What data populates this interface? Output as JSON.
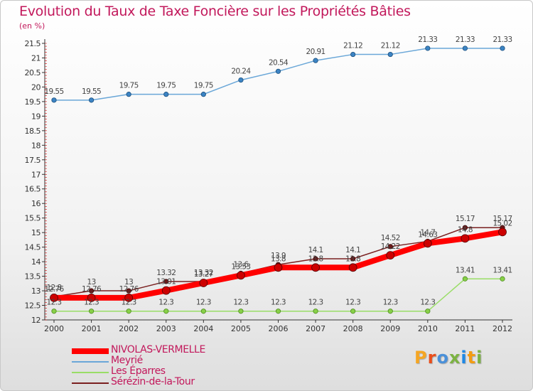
{
  "title": "Evolution du Taux de Taxe Foncière sur les Propriétés Bâties",
  "unit_label": "(en %)",
  "logo": {
    "text": "Proxiti",
    "letters": [
      "P",
      "r",
      "o",
      "x",
      "i",
      "t",
      "i"
    ],
    "letter_colors": [
      "#f5a623",
      "#e94e1b",
      "#4a90d9",
      "#7cb342",
      "#1e88e5",
      "#f39c12",
      "#7cb342"
    ]
  },
  "chart_data": {
    "type": "line",
    "title": "Evolution du Taux de Taxe Foncière sur les Propriétés Bâties",
    "ylabel": "(en %)",
    "xlabel": "",
    "x": [
      "2000",
      "2001",
      "2002",
      "2003",
      "2004",
      "2005",
      "2006",
      "2007",
      "2008",
      "2009",
      "2010",
      "2011",
      "2012"
    ],
    "ylim": [
      12,
      21.5
    ],
    "yticks": [
      "12",
      "12.5",
      "13",
      "13.5",
      "14",
      "14.5",
      "15",
      "15.5",
      "16",
      "16.5",
      "17",
      "17.5",
      "18",
      "18.5",
      "19",
      "19.5",
      "20",
      "20.5",
      "21",
      "21.5"
    ],
    "grid": false,
    "legend_position": "bottom-left",
    "series": [
      {
        "name": "NIVOLAS-VERMELLE",
        "color": "#ff0000",
        "values": [
          12.76,
          12.76,
          12.76,
          13.01,
          13.27,
          13.53,
          13.8,
          13.8,
          13.8,
          14.22,
          14.63,
          14.8,
          15.02
        ],
        "labels": [
          "12.76",
          "12.76",
          "12.76",
          "13.01",
          "13.27",
          "13.53",
          "13.8",
          "13.8",
          "13.8",
          "14.22",
          "14.63",
          "14.8",
          "15.02"
        ]
      },
      {
        "name": "Meyrié",
        "color": "#6aa7d8",
        "values": [
          19.55,
          19.55,
          19.75,
          19.75,
          19.75,
          20.24,
          20.54,
          20.91,
          21.12,
          21.12,
          21.33,
          21.33,
          21.33
        ],
        "labels": [
          "19.55",
          "19.55",
          "19.75",
          "19.75",
          "19.75",
          "20.24",
          "20.54",
          "20.91",
          "21.12",
          "21.12",
          "21.33",
          "21.33",
          "21.33"
        ]
      },
      {
        "name": "Les Éparres",
        "color": "#99dd66",
        "values": [
          12.3,
          12.3,
          12.3,
          12.3,
          12.3,
          12.3,
          12.3,
          12.3,
          12.3,
          12.3,
          12.3,
          13.41,
          13.41
        ],
        "labels": [
          "12.3",
          "12.3",
          "12.3",
          "12.3",
          "12.3",
          "12.3",
          "12.3",
          "12.3",
          "12.3",
          "12.3",
          "12.3",
          "13.41",
          "13.41"
        ]
      },
      {
        "name": "Sérézin-de-la-Tour",
        "color": "#7a2020",
        "values": [
          12.8,
          13.0,
          13.0,
          13.32,
          13.32,
          13.6,
          13.9,
          14.1,
          14.1,
          14.52,
          14.7,
          15.17,
          15.17
        ],
        "labels": [
          "12.8",
          "13",
          "13",
          "13.32",
          "13.32",
          "13.6",
          "13.9",
          "14.1",
          "14.1",
          "14.52",
          "14.7",
          "15.17",
          "15.17"
        ]
      }
    ]
  }
}
